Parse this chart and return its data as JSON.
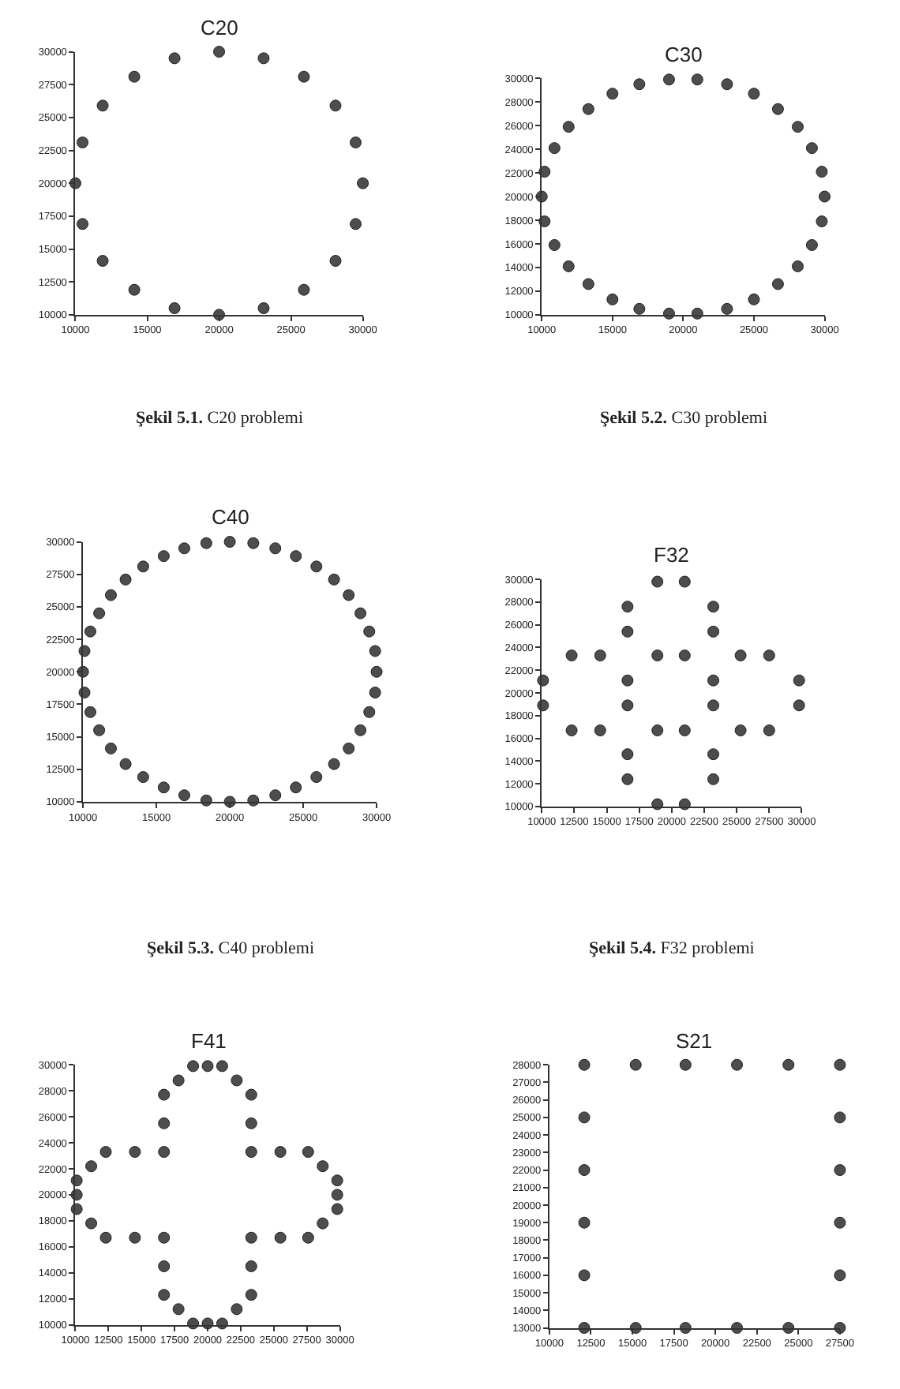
{
  "chart_data": [
    {
      "type": "scatter",
      "title": "C20",
      "color": "#4d4d4d",
      "marker": "circle",
      "x": [
        20000,
        23100,
        25900,
        28100,
        29500,
        30000,
        29500,
        28100,
        25900,
        23100,
        20000,
        16900,
        14100,
        11900,
        10500,
        10000,
        10500,
        11900,
        14100,
        16900
      ],
      "values": [
        30000,
        29500,
        28100,
        25900,
        23100,
        20000,
        16900,
        14100,
        11900,
        10500,
        10000,
        10500,
        11900,
        14100,
        16900,
        20000,
        23100,
        25900,
        28100,
        29500
      ],
      "xlim": [
        10000,
        30000
      ],
      "ylim": [
        10000,
        30000
      ],
      "xticks": [
        10000,
        15000,
        20000,
        25000,
        30000
      ],
      "yticks": [
        10000,
        12500,
        15000,
        17500,
        20000,
        22500,
        25000,
        27500,
        30000
      ],
      "annotations": [
        "Şekil 5.1. C20 problemi"
      ]
    },
    {
      "type": "scatter",
      "title": "C30",
      "color": "#4d4d4d",
      "marker": "circle",
      "x": [
        21000,
        23100,
        25000,
        26700,
        28100,
        29100,
        29800,
        30000,
        29800,
        29100,
        28100,
        26700,
        25000,
        23100,
        21000,
        19000,
        16900,
        15000,
        13300,
        11900,
        10900,
        10200,
        10000,
        10200,
        10900,
        11900,
        13300,
        15000,
        16900,
        19000
      ],
      "values": [
        29900,
        29500,
        28700,
        27400,
        25900,
        24100,
        22100,
        20000,
        17900,
        15900,
        14100,
        12600,
        11300,
        10500,
        10100,
        10100,
        10500,
        11300,
        12600,
        14100,
        15900,
        17900,
        20000,
        22100,
        24100,
        25900,
        27400,
        28700,
        29500,
        29900
      ],
      "xlim": [
        10000,
        30000
      ],
      "ylim": [
        10000,
        30000
      ],
      "xticks": [
        10000,
        15000,
        20000,
        25000,
        30000
      ],
      "yticks": [
        10000,
        12000,
        14000,
        16000,
        18000,
        20000,
        22000,
        24000,
        26000,
        28000,
        30000
      ],
      "annotations": [
        "Şekil 5.2. C30 problemi"
      ]
    },
    {
      "type": "scatter",
      "title": "C40",
      "color": "#4d4d4d",
      "marker": "circle",
      "x": [
        20000,
        21600,
        23100,
        24500,
        25900,
        27100,
        28100,
        28900,
        29500,
        29900,
        30000,
        29900,
        29500,
        28900,
        28100,
        27100,
        25900,
        24500,
        23100,
        21600,
        20000,
        18400,
        16900,
        15500,
        14100,
        12900,
        11900,
        11100,
        10500,
        10100,
        10000,
        10100,
        10500,
        11100,
        11900,
        12900,
        14100,
        15500,
        16900,
        18400
      ],
      "values": [
        30000,
        29900,
        29500,
        28900,
        28100,
        27100,
        25900,
        24500,
        23100,
        21600,
        20000,
        18400,
        16900,
        15500,
        14100,
        12900,
        11900,
        11100,
        10500,
        10100,
        10000,
        10100,
        10500,
        11100,
        11900,
        12900,
        14100,
        15500,
        16900,
        18400,
        20000,
        21600,
        23100,
        24500,
        25900,
        27100,
        28100,
        28900,
        29500,
        29900
      ],
      "xlim": [
        10000,
        30000
      ],
      "ylim": [
        10000,
        30000
      ],
      "xticks": [
        10000,
        15000,
        20000,
        25000,
        30000
      ],
      "yticks": [
        10000,
        12500,
        15000,
        17500,
        20000,
        22500,
        25000,
        27500,
        30000
      ],
      "annotations": [
        "Şekil 5.3. C40 problemi"
      ]
    },
    {
      "type": "scatter",
      "title": "F32",
      "color": "#4d4d4d",
      "marker": "circle",
      "x": [
        18900,
        21000,
        16600,
        23200,
        16600,
        23200,
        12300,
        14500,
        18900,
        21000,
        25300,
        27500,
        10100,
        16600,
        23200,
        29800,
        10100,
        16600,
        23200,
        29800,
        12300,
        14500,
        18900,
        21000,
        25300,
        27500,
        16600,
        23200,
        16600,
        23200,
        18900,
        21000
      ],
      "values": [
        29800,
        29800,
        27600,
        27600,
        25400,
        25400,
        23300,
        23300,
        23300,
        23300,
        23300,
        23300,
        21100,
        21100,
        21100,
        21100,
        18900,
        18900,
        18900,
        18900,
        16700,
        16700,
        16700,
        16700,
        16700,
        16700,
        14600,
        14600,
        12400,
        12400,
        10200,
        10200
      ],
      "xlim": [
        10000,
        30000
      ],
      "ylim": [
        10000,
        30000
      ],
      "xticks": [
        10000,
        12500,
        15000,
        17500,
        20000,
        22500,
        25000,
        27500,
        30000
      ],
      "yticks": [
        10000,
        12000,
        14000,
        16000,
        18000,
        20000,
        22000,
        24000,
        26000,
        28000,
        30000
      ],
      "annotations": [
        "Şekil 5.4. F32 problemi"
      ]
    },
    {
      "type": "scatter",
      "title": "F41",
      "color": "#4d4d4d",
      "marker": "circle",
      "x": [
        18900,
        20000,
        21100,
        17800,
        22200,
        16700,
        23300,
        16700,
        23300,
        12300,
        14500,
        16700,
        23300,
        25500,
        27600,
        11200,
        28700,
        10100,
        29800,
        10100,
        29800,
        10100,
        29800,
        11200,
        28700,
        12300,
        14500,
        16700,
        23300,
        25500,
        27600,
        16700,
        23300,
        16700,
        23300,
        17800,
        22200,
        18900,
        20000,
        21100
      ],
      "values": [
        29900,
        29900,
        29900,
        28800,
        28800,
        27700,
        27700,
        25500,
        25500,
        23300,
        23300,
        23300,
        23300,
        23300,
        23300,
        22200,
        22200,
        21100,
        21100,
        20000,
        20000,
        18900,
        18900,
        17800,
        17800,
        16700,
        16700,
        16700,
        16700,
        16700,
        16700,
        14500,
        14500,
        12300,
        12300,
        11200,
        11200,
        10100,
        10100,
        10100
      ],
      "xlim": [
        10000,
        30000
      ],
      "ylim": [
        10000,
        30000
      ],
      "xticks": [
        10000,
        12500,
        15000,
        17500,
        20000,
        22500,
        25000,
        27500,
        30000
      ],
      "yticks": [
        10000,
        12000,
        14000,
        16000,
        18000,
        20000,
        22000,
        24000,
        26000,
        28000,
        30000
      ]
    },
    {
      "type": "scatter",
      "title": "S21",
      "color": "#4d4d4d",
      "marker": "circle",
      "x": [
        12100,
        15200,
        18200,
        21300,
        24400,
        27500,
        12100,
        27500,
        12100,
        27500,
        12100,
        27500,
        12100,
        27500,
        12100,
        15200,
        18200,
        21300,
        24400,
        27500
      ],
      "values": [
        28000,
        28000,
        28000,
        28000,
        28000,
        28000,
        25000,
        25000,
        22000,
        22000,
        19000,
        19000,
        16000,
        16000,
        13000,
        13000,
        13000,
        13000,
        13000,
        13000
      ],
      "xlim": [
        10000,
        27500
      ],
      "ylim": [
        13000,
        28000
      ],
      "xticks": [
        10000,
        12500,
        15000,
        17500,
        20000,
        22500,
        25000,
        27500
      ],
      "yticks": [
        13000,
        14000,
        15000,
        16000,
        17000,
        18000,
        19000,
        20000,
        21000,
        22000,
        23000,
        24000,
        25000,
        26000,
        27000,
        28000
      ]
    }
  ]
}
